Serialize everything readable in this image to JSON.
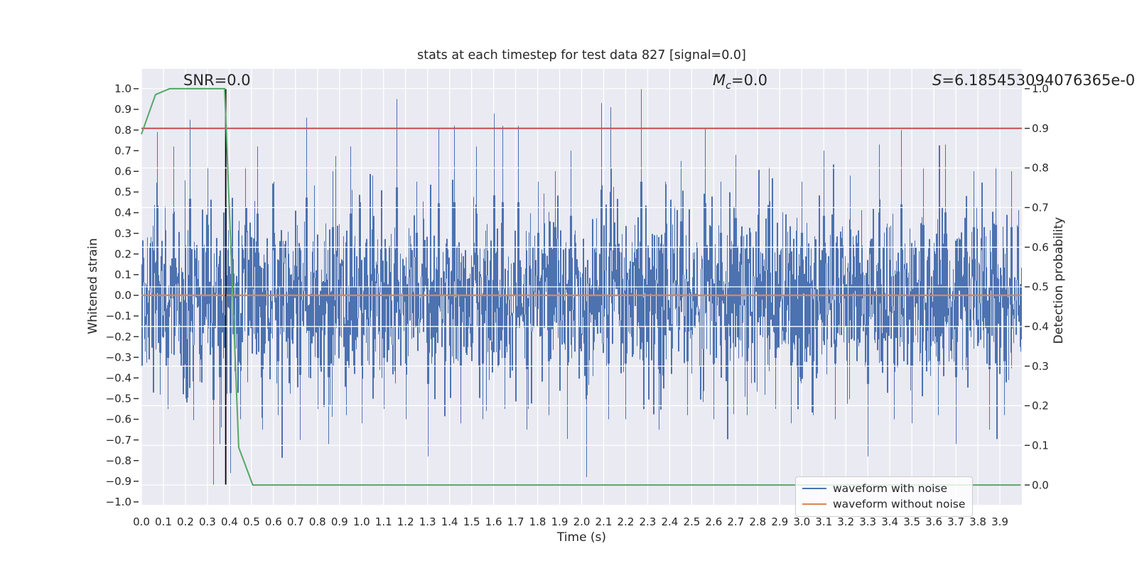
{
  "figure": {
    "bg": "#ffffff",
    "plot_bg": "#eaeaf2",
    "grid_color": "#ffffff",
    "text_color": "#262626",
    "tick_mark_color": "#262626"
  },
  "title": "stats at each timestep for test data 827 [signal=0.0]",
  "annotations": {
    "snr": "SNR=0.0",
    "mc_symbol": "M",
    "mc_subscript": "c",
    "mc_value": "=0.0",
    "s_symbol": "S",
    "s_value": "=6.185453094076365e-0"
  },
  "axes": {
    "xlabel": "Time (s)",
    "ylabel_left": "Whitened strain",
    "ylabel_right": "Detection probability",
    "xlim": [
      0,
      4.0
    ],
    "ylim_left": [
      -1.014,
      1.096
    ],
    "ylim_right": [
      -0.05,
      1.05
    ],
    "x_ticks": [
      "0.0",
      "0.1",
      "0.2",
      "0.3",
      "0.4",
      "0.5",
      "0.6",
      "0.7",
      "0.8",
      "0.9",
      "1.0",
      "1.1",
      "1.2",
      "1.3",
      "1.4",
      "1.5",
      "1.6",
      "1.7",
      "1.8",
      "1.9",
      "2.0",
      "2.1",
      "2.2",
      "2.3",
      "2.4",
      "2.5",
      "2.6",
      "2.7",
      "2.8",
      "2.9",
      "3.0",
      "3.1",
      "3.2",
      "3.3",
      "3.4",
      "3.5",
      "3.6",
      "3.7",
      "3.8",
      "3.9"
    ],
    "y_ticks_left": [
      "1.0",
      "0.9",
      "0.8",
      "0.7",
      "0.6",
      "0.5",
      "0.4",
      "0.3",
      "0.2",
      "0.1",
      "0.0",
      "−0.1",
      "−0.2",
      "−0.3",
      "−0.4",
      "−0.5",
      "−0.6",
      "−0.7",
      "−0.8",
      "−0.9",
      "−1.0"
    ],
    "y_ticks_right": [
      "1.0",
      "0.9",
      "0.8",
      "0.7",
      "0.6",
      "0.5",
      "0.4",
      "0.3",
      "0.2",
      "0.1",
      "0.0"
    ]
  },
  "legend": {
    "items": [
      {
        "label": "waveform with noise",
        "color": "#4c72b0"
      },
      {
        "label": "waveform without noise",
        "color": "#dd8452"
      }
    ]
  },
  "chart_data": {
    "type": "line",
    "title": "stats at each timestep for test data 827 [signal=0.0]",
    "xlabel": "Time (s)",
    "ylabel_left": "Whitened strain",
    "ylabel_right": "Detection probability",
    "xlim": [
      0,
      4.0
    ],
    "ylim_left": [
      -1.014,
      1.096
    ],
    "ylim_right": [
      -0.05,
      1.05
    ],
    "grid": {
      "vertical_step_s": 0.1,
      "horizontal_step_prob": 0.1
    },
    "legend_position": "lower right inside axes",
    "series": [
      {
        "name": "waveform with noise",
        "axis": "left",
        "color": "#4c72b0",
        "kind": "gaussian-noise",
        "sigma": 0.21,
        "seed": 827,
        "n_columns": 1239,
        "peaks": [
          [
            0.07,
            0.79
          ],
          [
            0.12,
            -0.55
          ],
          [
            0.145,
            0.72
          ],
          [
            0.2,
            -0.5
          ],
          [
            0.22,
            0.85
          ],
          [
            0.3,
            0.62
          ],
          [
            0.325,
            -0.92
          ],
          [
            0.355,
            -0.72
          ],
          [
            0.405,
            -0.86
          ],
          [
            0.45,
            -0.6
          ],
          [
            0.47,
            0.62
          ],
          [
            0.525,
            0.72
          ],
          [
            0.55,
            -0.65
          ],
          [
            0.6,
            0.55
          ],
          [
            0.62,
            -0.58
          ],
          [
            0.72,
            -0.7
          ],
          [
            0.75,
            0.86
          ],
          [
            0.8,
            -0.55
          ],
          [
            0.85,
            -0.72
          ],
          [
            0.87,
            0.6
          ],
          [
            0.93,
            -0.58
          ],
          [
            0.95,
            0.72
          ],
          [
            1.0,
            -0.62
          ],
          [
            1.05,
            0.58
          ],
          [
            1.1,
            -0.55
          ],
          [
            1.16,
            0.95
          ],
          [
            1.2,
            -0.6
          ],
          [
            1.25,
            0.55
          ],
          [
            1.3,
            -0.78
          ],
          [
            1.35,
            0.81
          ],
          [
            1.38,
            -0.58
          ],
          [
            1.42,
            0.82
          ],
          [
            1.45,
            -0.62
          ],
          [
            1.52,
            0.72
          ],
          [
            1.55,
            -0.6
          ],
          [
            1.6,
            0.88
          ],
          [
            1.64,
            0.82
          ],
          [
            1.65,
            -0.55
          ],
          [
            1.71,
            0.82
          ],
          [
            1.75,
            -0.65
          ],
          [
            1.8,
            0.55
          ],
          [
            1.85,
            -0.58
          ],
          [
            1.88,
            0.6
          ],
          [
            1.95,
            0.7
          ],
          [
            2.02,
            -0.88
          ],
          [
            2.09,
            0.93
          ],
          [
            2.12,
            -0.6
          ],
          [
            2.13,
            0.91
          ],
          [
            2.2,
            -0.6
          ],
          [
            2.27,
            1.0
          ],
          [
            2.35,
            -0.65
          ],
          [
            2.38,
            0.55
          ],
          [
            2.45,
            0.65
          ],
          [
            2.48,
            -0.58
          ],
          [
            2.56,
            0.81
          ],
          [
            2.6,
            -0.6
          ],
          [
            2.63,
            0.55
          ],
          [
            2.7,
            0.68
          ],
          [
            2.75,
            -0.58
          ],
          [
            2.85,
            0.62
          ],
          [
            2.88,
            -0.55
          ],
          [
            2.95,
            -0.62
          ],
          [
            3.0,
            0.55
          ],
          [
            3.05,
            -0.58
          ],
          [
            3.1,
            0.7
          ],
          [
            3.15,
            -0.6
          ],
          [
            3.22,
            0.58
          ],
          [
            3.3,
            -0.78
          ],
          [
            3.35,
            0.73
          ],
          [
            3.42,
            -0.6
          ],
          [
            3.45,
            0.8
          ],
          [
            3.5,
            -0.62
          ],
          [
            3.55,
            0.62
          ],
          [
            3.62,
            -0.58
          ],
          [
            3.65,
            0.73
          ],
          [
            3.7,
            -0.72
          ],
          [
            3.78,
            0.6
          ],
          [
            3.85,
            -0.65
          ],
          [
            3.88,
            0.62
          ],
          [
            3.92,
            -0.58
          ],
          [
            3.95,
            0.6
          ]
        ]
      },
      {
        "name": "waveform without noise",
        "axis": "left",
        "color": "#dd8452",
        "kind": "hline",
        "value": 0.0
      },
      {
        "name": "detection probability",
        "axis": "right",
        "color": "#55a868",
        "kind": "polyline",
        "points": [
          [
            0.0,
            0.885
          ],
          [
            0.064,
            0.985
          ],
          [
            0.128,
            1.0
          ],
          [
            0.378,
            1.0
          ],
          [
            0.442,
            0.095
          ],
          [
            0.506,
            0.0
          ],
          [
            3.995,
            0.0
          ]
        ]
      },
      {
        "name": "detection threshold",
        "axis": "right",
        "color": "#c44e52",
        "kind": "hline",
        "value": 0.9
      },
      {
        "name": "event time marker",
        "axis": "right",
        "color": "#000000",
        "kind": "vline",
        "x": 0.383,
        "span": [
          0.0,
          1.0
        ]
      }
    ]
  }
}
